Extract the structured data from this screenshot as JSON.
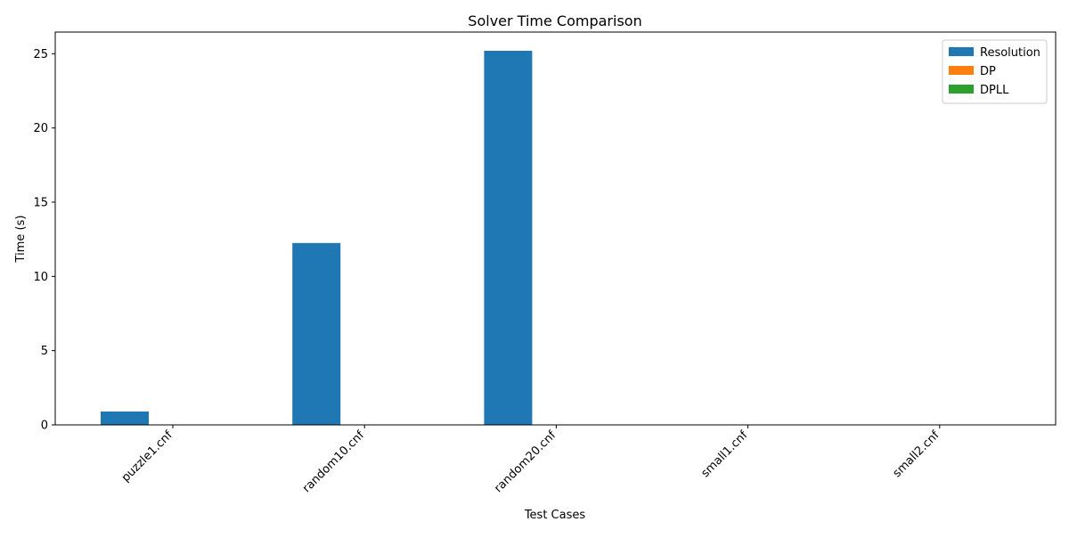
{
  "chart_data": {
    "type": "bar",
    "title": "Solver Time Comparison",
    "xlabel": "Test Cases",
    "ylabel": "Time (s)",
    "categories": [
      "puzzle1.cnf",
      "random10.cnf",
      "random20.cnf",
      "small1.cnf",
      "small2.cnf"
    ],
    "series": [
      {
        "name": "Resolution",
        "color": "#1f77b4",
        "values": [
          0.9,
          12.25,
          25.2,
          0.0,
          0.0
        ]
      },
      {
        "name": "DP",
        "color": "#ff7f0e",
        "values": [
          0.0,
          0.0,
          0.0,
          0.0,
          0.0
        ]
      },
      {
        "name": "DPLL",
        "color": "#2ca02c",
        "values": [
          0.0,
          0.0,
          0.0,
          0.0,
          0.0
        ]
      }
    ],
    "ylim": [
      0,
      26.46
    ],
    "yticks": [
      0,
      5,
      10,
      15,
      20,
      25
    ],
    "grid": false,
    "legend_position": "top-right"
  }
}
